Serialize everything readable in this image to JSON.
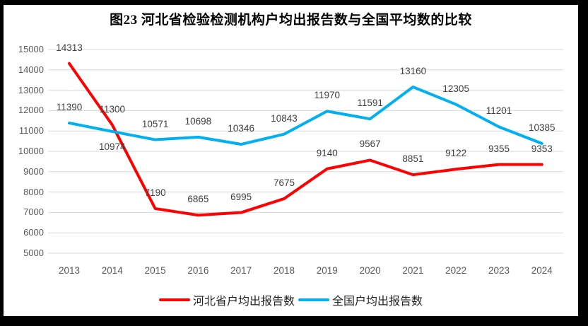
{
  "frame": {
    "border_color": "#000000",
    "panel_background": "#ffffff"
  },
  "chart_data": {
    "type": "line",
    "title": "图23  河北省检验检测机构户均出报告数与全国平均数的比较",
    "categories": [
      "2013",
      "2014",
      "2015",
      "2016",
      "2017",
      "2018",
      "2019",
      "2020",
      "2021",
      "2022",
      "2023",
      "2024"
    ],
    "series": [
      {
        "name": "河北省户均出报告数",
        "color": "#FF0000",
        "values": [
          14313,
          11300,
          7190,
          6865,
          6995,
          7675,
          9140,
          9567,
          8851,
          9122,
          9355,
          9353
        ],
        "label_below_indices": []
      },
      {
        "name": "全国户均出报告数",
        "color": "#00B0F0",
        "values": [
          11390,
          10974,
          10571,
          10698,
          10346,
          10843,
          11970,
          11591,
          13160,
          12305,
          11201,
          10385
        ],
        "label_below_indices": [
          1
        ]
      }
    ],
    "xlabel": "",
    "ylabel": "",
    "ylim": [
      5000,
      15000
    ],
    "ytick_step": 1000,
    "grid": true,
    "gridline_color": "#D9D9D9",
    "tick_label_color": "#595959",
    "data_label_color": "#404040",
    "legend_position": "bottom"
  }
}
